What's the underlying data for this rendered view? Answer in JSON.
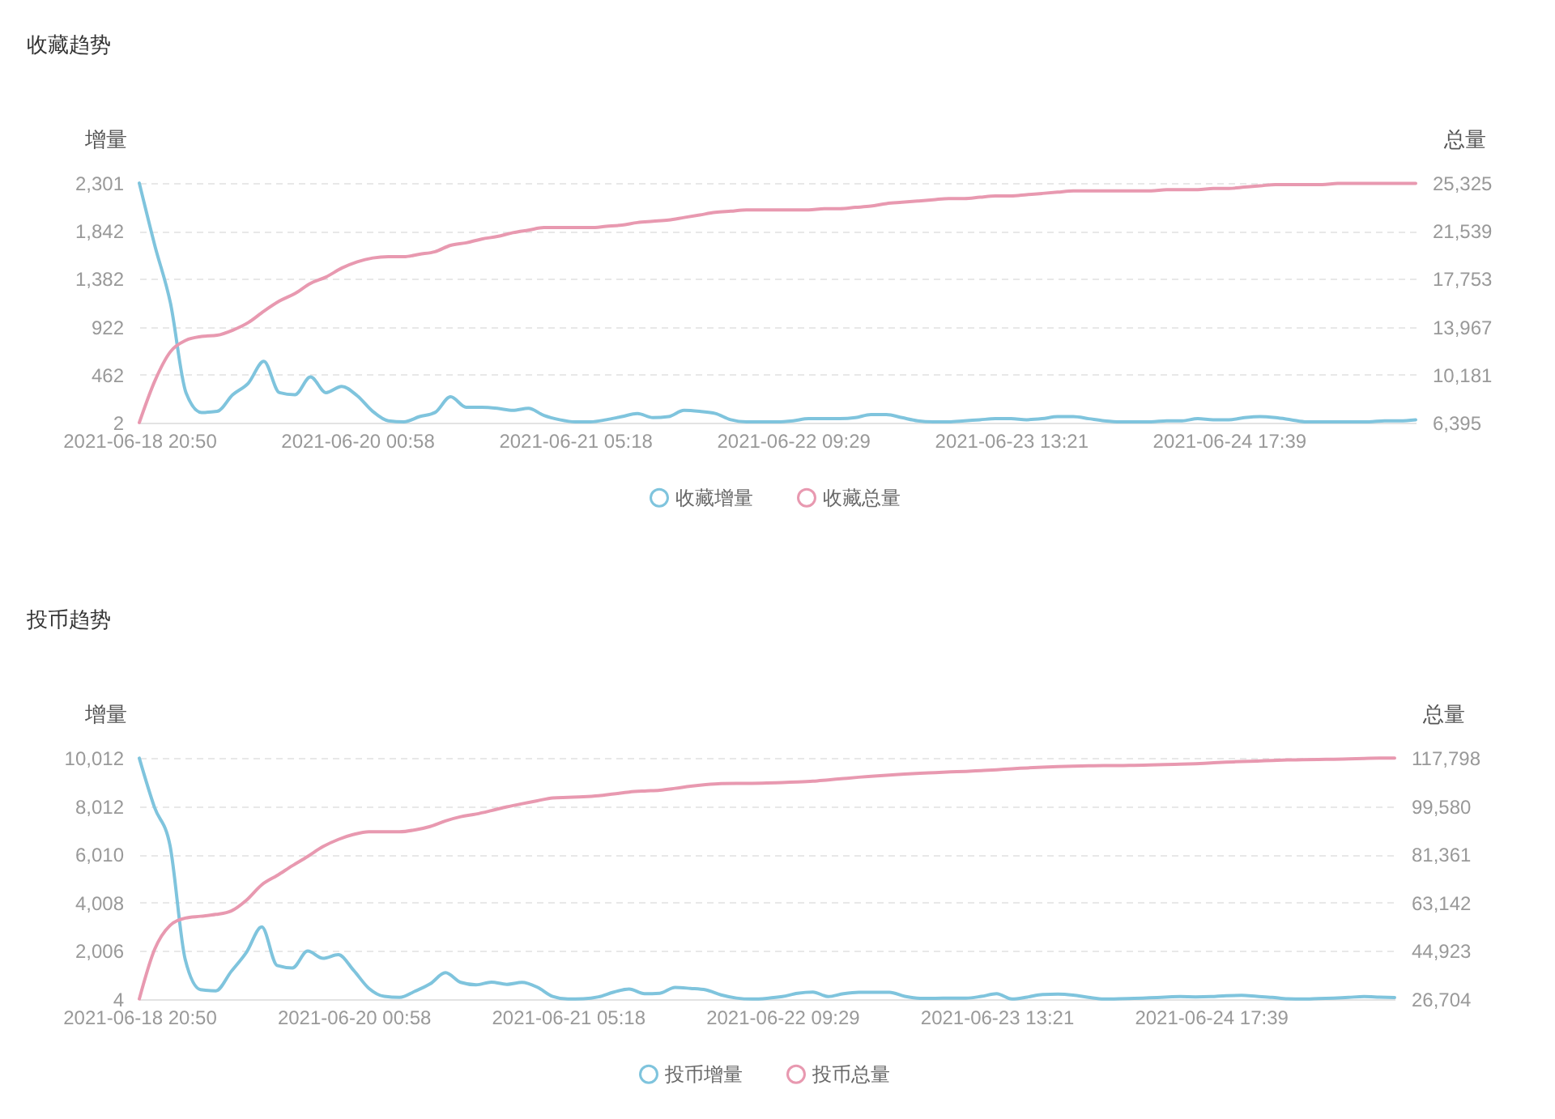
{
  "chart_data": [
    {
      "type": "line",
      "title": "收藏趋势",
      "ylabel": "增量",
      "y2label": "总量",
      "categories": [
        "2021-06-18 20:50",
        null,
        null,
        null,
        null,
        null,
        null,
        null,
        null,
        null,
        null,
        null,
        null,
        null,
        "2021-06-20 00:58",
        null,
        null,
        null,
        null,
        null,
        null,
        null,
        null,
        null,
        null,
        null,
        null,
        null,
        "2021-06-21 05:18",
        null,
        null,
        null,
        null,
        null,
        null,
        null,
        null,
        null,
        null,
        null,
        null,
        null,
        "2021-06-22 09:29",
        null,
        null,
        null,
        null,
        null,
        null,
        null,
        null,
        null,
        null,
        null,
        null,
        null,
        "2021-06-23 13:21",
        null,
        null,
        null,
        null,
        null,
        null,
        null,
        null,
        null,
        null,
        null,
        null,
        null,
        "2021-06-24 17:39",
        null,
        null,
        null,
        null,
        null,
        null,
        null,
        null,
        null,
        null,
        null,
        null
      ],
      "series": [
        {
          "name": "收藏增量",
          "color": "#7fc4dd",
          "values": [
            2300,
            1700,
            1150,
            290,
            100,
            110,
            270,
            380,
            590,
            290,
            270,
            440,
            290,
            350,
            260,
            110,
            20,
            10,
            60,
            100,
            250,
            150,
            150,
            140,
            120,
            140,
            70,
            30,
            10,
            10,
            30,
            60,
            90,
            50,
            60,
            120,
            110,
            90,
            30,
            10,
            10,
            10,
            20,
            40,
            40,
            40,
            50,
            80,
            80,
            50,
            20,
            10,
            10,
            20,
            30,
            40,
            40,
            30,
            40,
            60,
            60,
            40,
            20,
            10,
            10,
            10,
            20,
            20,
            40,
            30,
            30,
            50,
            60,
            50,
            30,
            10,
            10,
            10,
            10,
            10,
            20,
            20,
            30
          ]
        },
        {
          "name": "收藏总量",
          "color": "#e899b0",
          "axis": "y2",
          "values": [
            6400,
            9700,
            12000,
            12900,
            13200,
            13300,
            13700,
            14300,
            15200,
            16000,
            16600,
            17400,
            17900,
            18600,
            19100,
            19400,
            19500,
            19500,
            19700,
            19900,
            20400,
            20600,
            20900,
            21100,
            21400,
            21600,
            21800,
            21800,
            21800,
            21800,
            21900,
            22000,
            22200,
            22300,
            22400,
            22600,
            22800,
            23000,
            23100,
            23200,
            23200,
            23200,
            23200,
            23200,
            23300,
            23300,
            23400,
            23500,
            23700,
            23800,
            23900,
            24000,
            24100,
            24100,
            24200,
            24300,
            24300,
            24400,
            24500,
            24600,
            24700,
            24700,
            24700,
            24700,
            24700,
            24700,
            24800,
            24800,
            24800,
            24900,
            24900,
            25000,
            25100,
            25200,
            25200,
            25200,
            25200,
            25300,
            25300,
            25300,
            25300,
            25300,
            25300
          ]
        }
      ],
      "ylim": [
        2,
        2301
      ],
      "yticks": [
        2,
        462,
        922,
        {
          "value": 1382,
          "label": "1,382"
        },
        {
          "value": 1842,
          "label": "1,842"
        },
        {
          "value": 2301,
          "label": "2,301"
        }
      ],
      "y2lim": [
        6395,
        25325
      ],
      "y2ticks": [
        {
          "value": 6395,
          "label": "6,395"
        },
        {
          "value": 10181,
          "label": "10,181"
        },
        {
          "value": 13967,
          "label": "13,967"
        },
        {
          "value": 17753,
          "label": "17,753"
        },
        {
          "value": 21539,
          "label": "21,539"
        },
        {
          "value": 25325,
          "label": "25,325"
        }
      ],
      "grid": "y",
      "legend": "bottom"
    },
    {
      "type": "line",
      "title": "投币趋势",
      "ylabel": "增量",
      "y2label": "总量",
      "categories": [
        "2021-06-18 20:50",
        null,
        null,
        null,
        null,
        null,
        null,
        null,
        null,
        null,
        null,
        null,
        null,
        null,
        "2021-06-20 00:58",
        null,
        null,
        null,
        null,
        null,
        null,
        null,
        null,
        null,
        null,
        null,
        null,
        null,
        "2021-06-21 05:18",
        null,
        null,
        null,
        null,
        null,
        null,
        null,
        null,
        null,
        null,
        null,
        null,
        null,
        "2021-06-22 09:29",
        null,
        null,
        null,
        null,
        null,
        null,
        null,
        null,
        null,
        null,
        null,
        null,
        null,
        "2021-06-23 13:21",
        null,
        null,
        null,
        null,
        null,
        null,
        null,
        null,
        null,
        null,
        null,
        null,
        null,
        "2021-06-24 17:39",
        null,
        null,
        null,
        null,
        null,
        null,
        null,
        null,
        null,
        null,
        null,
        null
      ],
      "series": [
        {
          "name": "投币增量",
          "color": "#7fc4dd",
          "values": [
            10000,
            7950,
            6400,
            1650,
            400,
            350,
            1150,
            1950,
            3000,
            1400,
            1300,
            2000,
            1700,
            1850,
            1200,
            450,
            120,
            80,
            330,
            640,
            1100,
            700,
            600,
            710,
            620,
            700,
            500,
            120,
            10,
            20,
            100,
            300,
            420,
            230,
            250,
            490,
            450,
            390,
            180,
            50,
            10,
            40,
            110,
            250,
            300,
            110,
            230,
            290,
            290,
            290,
            120,
            40,
            40,
            50,
            50,
            120,
            230,
            10,
            90,
            200,
            210,
            170,
            80,
            10,
            20,
            40,
            60,
            90,
            110,
            100,
            110,
            150,
            160,
            120,
            80,
            20,
            10,
            30,
            50,
            80,
            110,
            90,
            70
          ]
        },
        {
          "name": "投币总量",
          "color": "#e899b0",
          "axis": "y2",
          "values": [
            26800,
            45500,
            54500,
            57300,
            58000,
            58700,
            60000,
            64100,
            69900,
            73400,
            77100,
            80600,
            84300,
            87000,
            88900,
            89900,
            89900,
            89900,
            90600,
            91900,
            94000,
            95600,
            96600,
            97900,
            99300,
            100500,
            101600,
            102700,
            102900,
            103100,
            103500,
            104200,
            104900,
            105300,
            105600,
            106300,
            107100,
            107700,
            108100,
            108200,
            108200,
            108300,
            108500,
            108700,
            109000,
            109500,
            110000,
            110500,
            110900,
            111300,
            111700,
            112000,
            112200,
            112500,
            112700,
            113000,
            113300,
            113700,
            114000,
            114300,
            114500,
            114700,
            114800,
            114900,
            114900,
            115000,
            115100,
            115300,
            115400,
            115600,
            115900,
            116200,
            116400,
            116600,
            116800,
            117000,
            117100,
            117200,
            117300,
            117400,
            117600,
            117700,
            117700
          ]
        }
      ],
      "ylim": [
        4,
        10012
      ],
      "yticks": [
        4,
        {
          "value": 2006,
          "label": "2,006"
        },
        {
          "value": 4008,
          "label": "4,008"
        },
        {
          "value": 6010,
          "label": "6,010"
        },
        {
          "value": 8012,
          "label": "8,012"
        },
        {
          "value": 10012,
          "label": "10,012"
        }
      ],
      "y2lim": [
        26704,
        117798
      ],
      "y2ticks": [
        {
          "value": 26704,
          "label": "26,704"
        },
        {
          "value": 44923,
          "label": "44,923"
        },
        {
          "value": 63142,
          "label": "63,142"
        },
        {
          "value": 81361,
          "label": "81,361"
        },
        {
          "value": 99580,
          "label": "99,580"
        },
        {
          "value": 117798,
          "label": "117,798"
        }
      ],
      "grid": "y",
      "legend": "bottom"
    }
  ]
}
